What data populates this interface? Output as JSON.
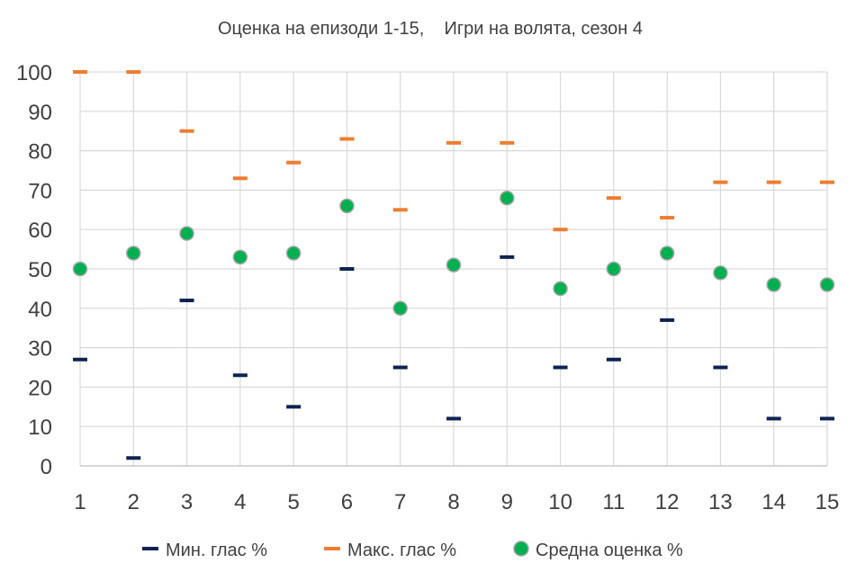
{
  "chart_data": {
    "type": "scatter",
    "title": "Оценка на епизоди 1-15,    Игри на волята, сезон 4",
    "xlabel": "",
    "ylabel": "",
    "categories": [
      "1",
      "2",
      "3",
      "4",
      "5",
      "6",
      "7",
      "8",
      "9",
      "10",
      "11",
      "12",
      "13",
      "14",
      "15"
    ],
    "ylim": [
      0,
      100
    ],
    "yticks": [
      "0",
      "10",
      "20",
      "30",
      "40",
      "50",
      "60",
      "70",
      "80",
      "90",
      "100"
    ],
    "grid": true,
    "legend_position": "bottom",
    "series": [
      {
        "name": "Мин. глас %",
        "marker": "dash",
        "color": "#0E2352",
        "values": [
          27,
          2,
          42,
          23,
          15,
          50,
          25,
          12,
          53,
          25,
          27,
          37,
          25,
          12,
          12
        ]
      },
      {
        "name": "Макс. глас %",
        "marker": "dash",
        "color": "#ED7D31",
        "values": [
          100,
          100,
          85,
          73,
          77,
          83,
          65,
          82,
          82,
          60,
          68,
          63,
          72,
          72,
          72
        ]
      },
      {
        "name": "Средна оценка %",
        "marker": "circle",
        "color": "#00B050",
        "edge_color": "#A5A5A5",
        "values": [
          50,
          54,
          59,
          53,
          54,
          66,
          40,
          51,
          68,
          45,
          50,
          54,
          49,
          46,
          46
        ]
      }
    ]
  }
}
